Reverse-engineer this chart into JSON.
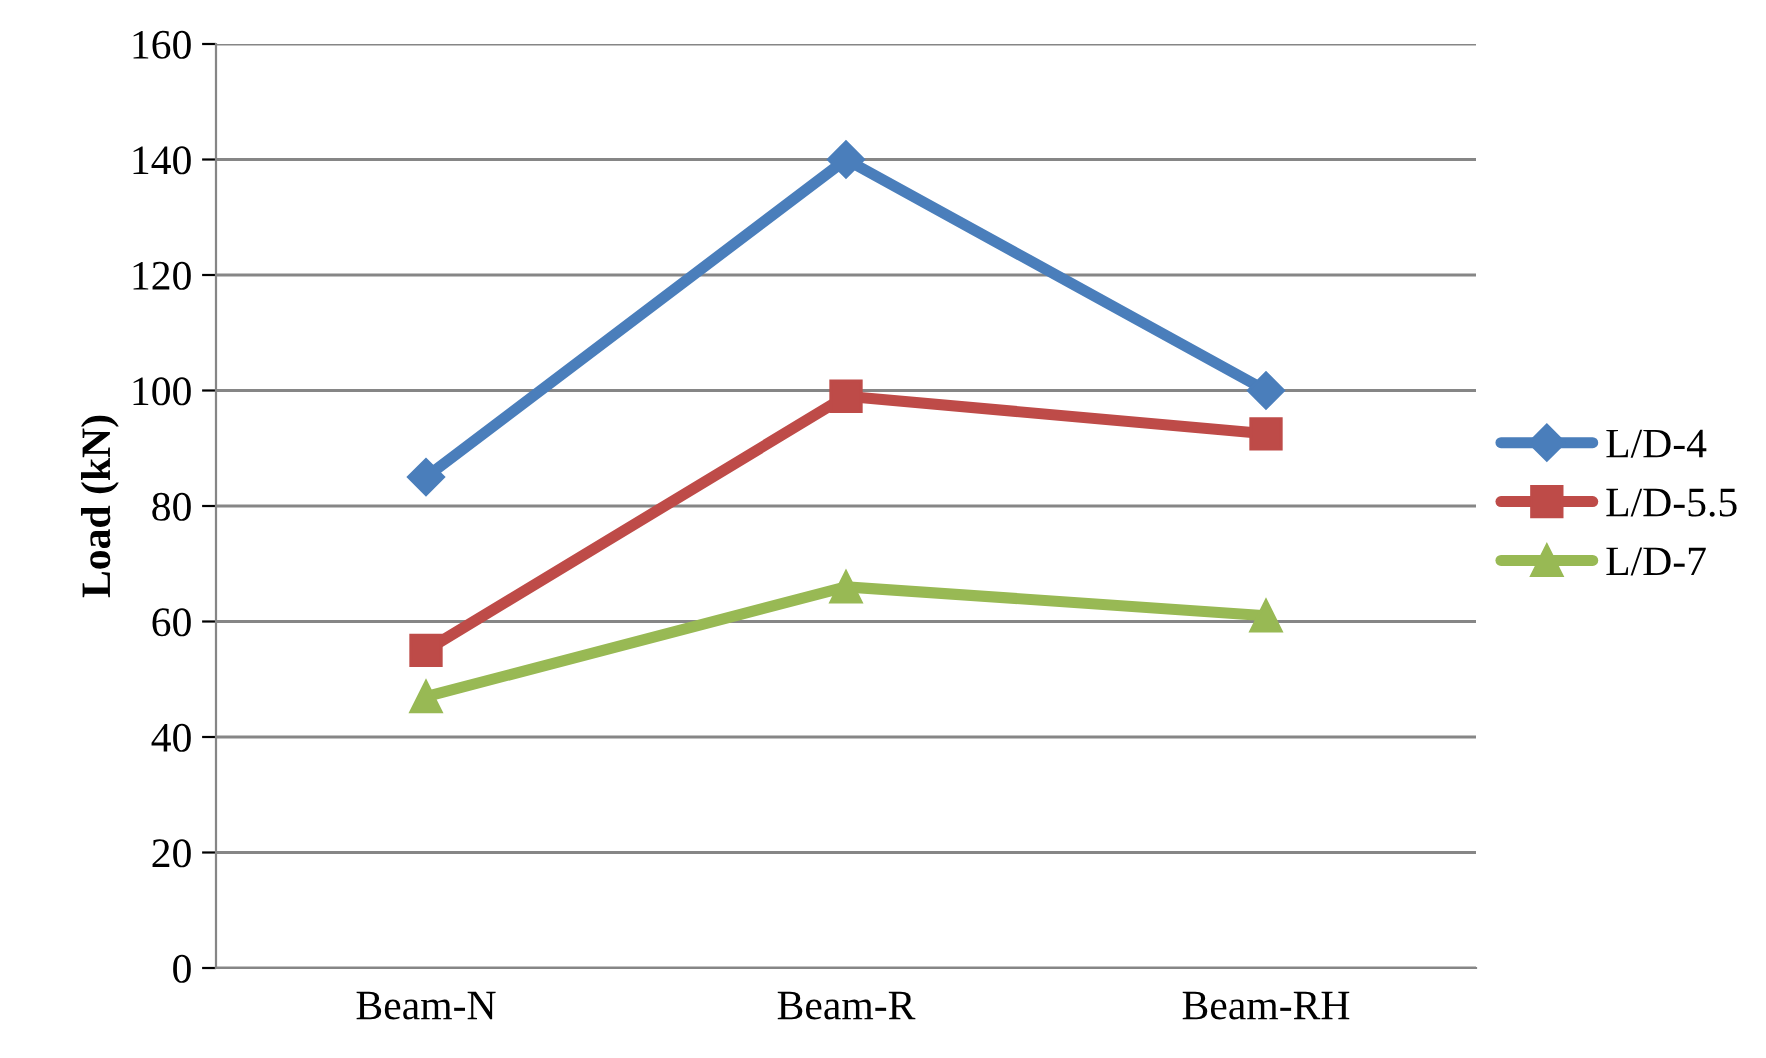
{
  "chart_data": {
    "type": "line",
    "ylabel": "Load (kN)",
    "categories": [
      "Beam-N",
      "Beam-R",
      "Beam-RH"
    ],
    "series": [
      {
        "name": "L/D-4",
        "color": "#4a7ebb",
        "marker": "diamond",
        "values": [
          85,
          140,
          100
        ]
      },
      {
        "name": "L/D-5.5",
        "color": "#be4b48",
        "marker": "square",
        "values": [
          55,
          99,
          92.5
        ]
      },
      {
        "name": "L/D-7",
        "color": "#98b954",
        "marker": "triangle",
        "values": [
          47,
          66,
          61
        ]
      }
    ],
    "ylim": [
      0,
      160
    ],
    "yticks": [
      0,
      20,
      40,
      60,
      80,
      100,
      120,
      140,
      160
    ],
    "grid": "y",
    "legend": "right",
    "line_style": "solid"
  }
}
